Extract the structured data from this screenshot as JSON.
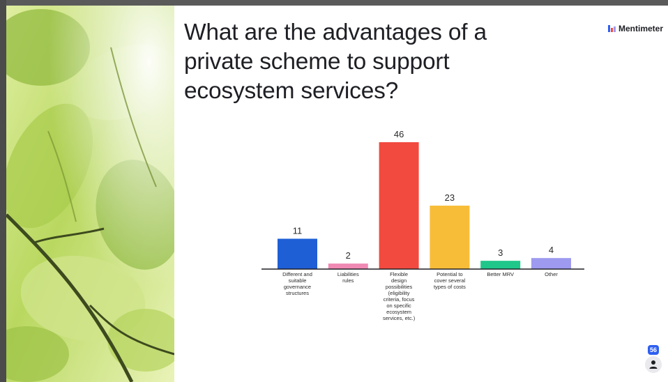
{
  "slide": {
    "title_lines": [
      "What are the advantages of a",
      "private scheme to support",
      "ecosystem services?"
    ],
    "brand": "Mentimeter",
    "participants": "56"
  },
  "colors": {
    "bar1": "#1f5fd6",
    "bar2": "#f08ab4",
    "bar3": "#f24a3f",
    "bar4": "#f8bd38",
    "bar5": "#1fc78a",
    "bar6": "#9d9af0",
    "brand_mark": [
      "#2f5ff0",
      "#f24a3f",
      "#9d9af0"
    ]
  },
  "icons": {
    "participants": "person-icon",
    "brand": "mentimeter-logo-icon"
  },
  "chart_data": {
    "type": "bar",
    "categories": [
      [
        "Different and",
        "suitable",
        "governance",
        "structures"
      ],
      [
        "Liabilities",
        "rules"
      ],
      [
        "Flexible",
        "design",
        "possibilities",
        "(eligibility",
        "criteria, focus",
        "on specific",
        "ecosystem",
        "services, etc.)"
      ],
      [
        "Potential to",
        "cover several",
        "types of costs"
      ],
      [
        "Better MRV"
      ],
      [
        "Other"
      ]
    ],
    "values": [
      11,
      2,
      46,
      23,
      3,
      4
    ],
    "value_labels": [
      "11",
      "2",
      "46",
      "23",
      "3",
      "4"
    ],
    "ylim": [
      0,
      46
    ],
    "grid": false
  }
}
